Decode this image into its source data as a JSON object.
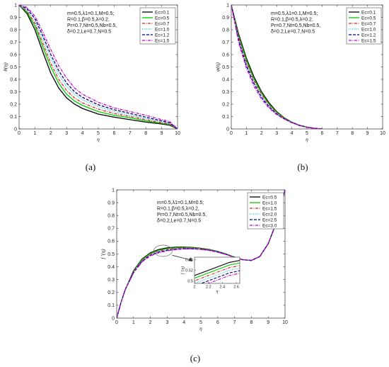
{
  "chart_data": [
    {
      "type": "line",
      "caption": "(a)",
      "xlabel": "η",
      "ylabel": "θ(η)",
      "xlim": [
        0,
        10
      ],
      "ylim": [
        0,
        1
      ],
      "xticks": [
        "0",
        "1",
        "2",
        "3",
        "4",
        "5",
        "6",
        "7",
        "8",
        "9",
        "10"
      ],
      "yticks": [
        "0",
        "0.1",
        "0.2",
        "0.3",
        "0.4",
        "0.5",
        "0.6",
        "0.7",
        "0.8",
        "0.9",
        "1"
      ],
      "annotation": [
        "m=0.5,λ1=0.1,M=0.5;",
        "R=0.1,β=0.5,λ=0.2,",
        "Pr=0.7,Nt=0.5,Nb=0.5,",
        "δ=0.2,Le=0.7,N=0.5"
      ],
      "legend_position": "top-right",
      "x": [
        0,
        0.5,
        1,
        1.5,
        2,
        2.5,
        3,
        3.5,
        4,
        5,
        6,
        7,
        8,
        9,
        9.5,
        10
      ],
      "series": [
        {
          "name": "Ec=0.1",
          "color": "#000000",
          "dash": "solid",
          "values": [
            1.0,
            0.93,
            0.8,
            0.62,
            0.45,
            0.33,
            0.25,
            0.2,
            0.165,
            0.12,
            0.095,
            0.075,
            0.055,
            0.04,
            0.03,
            0.0
          ]
        },
        {
          "name": "Ec=0.5",
          "color": "#00cc00",
          "dash": "solid",
          "values": [
            1.0,
            0.94,
            0.83,
            0.66,
            0.5,
            0.37,
            0.28,
            0.225,
            0.19,
            0.14,
            0.11,
            0.09,
            0.065,
            0.045,
            0.035,
            0.0
          ]
        },
        {
          "name": "Ec=0.7",
          "color": "#d62728",
          "dash": "dashdot",
          "values": [
            1.0,
            0.95,
            0.85,
            0.69,
            0.53,
            0.4,
            0.31,
            0.25,
            0.21,
            0.16,
            0.125,
            0.1,
            0.075,
            0.05,
            0.04,
            0.0
          ]
        },
        {
          "name": "Ec=1.0",
          "color": "#17becf",
          "dash": "dotted",
          "values": [
            1.0,
            0.96,
            0.87,
            0.72,
            0.57,
            0.44,
            0.34,
            0.28,
            0.235,
            0.18,
            0.14,
            0.11,
            0.085,
            0.06,
            0.045,
            0.0
          ]
        },
        {
          "name": "Ec=1.2",
          "color": "#00008b",
          "dash": "dashed",
          "values": [
            1.0,
            0.97,
            0.89,
            0.75,
            0.6,
            0.47,
            0.37,
            0.3,
            0.255,
            0.195,
            0.155,
            0.125,
            0.095,
            0.065,
            0.05,
            0.0
          ]
        },
        {
          "name": "Ec=1.5",
          "color": "#cc00cc",
          "dash": "dashdot",
          "values": [
            1.0,
            0.98,
            0.91,
            0.78,
            0.64,
            0.51,
            0.41,
            0.33,
            0.28,
            0.215,
            0.17,
            0.14,
            0.11,
            0.075,
            0.06,
            0.0
          ]
        }
      ]
    },
    {
      "type": "line",
      "caption": "(b)",
      "xlabel": "η",
      "ylabel": "φ(η)",
      "xlim": [
        0,
        10
      ],
      "ylim": [
        0,
        1
      ],
      "xticks": [
        "0",
        "1",
        "2",
        "3",
        "4",
        "5",
        "6",
        "7",
        "8",
        "9",
        "10"
      ],
      "yticks": [
        "0",
        "0.1",
        "0.2",
        "0.3",
        "0.4",
        "0.5",
        "0.6",
        "0.7",
        "0.8",
        "0.9",
        "1"
      ],
      "annotation": [
        "m=0.5,λ1=0.1,M=0.5;",
        "R=0.1,β=0.5,λ=0.2,",
        "Pr=0.7,Nt=0.5,Nb=0.5,",
        "δ=0.2,Le=0.7,N=0.5"
      ],
      "legend_position": "top-right",
      "x": [
        0,
        0.5,
        1,
        1.5,
        2,
        2.5,
        3,
        3.5,
        4,
        4.5,
        5,
        5.5,
        6
      ],
      "series": [
        {
          "name": "Ec=0.1",
          "color": "#000000",
          "dash": "solid",
          "values": [
            1.0,
            0.76,
            0.57,
            0.42,
            0.3,
            0.21,
            0.14,
            0.09,
            0.055,
            0.03,
            0.015,
            0.005,
            0.0
          ]
        },
        {
          "name": "Ec=0.5",
          "color": "#00cc00",
          "dash": "solid",
          "values": [
            1.0,
            0.745,
            0.555,
            0.405,
            0.29,
            0.2,
            0.135,
            0.088,
            0.054,
            0.03,
            0.015,
            0.005,
            0.0
          ]
        },
        {
          "name": "Ec=0.7",
          "color": "#d62728",
          "dash": "dashdot",
          "values": [
            1.0,
            0.735,
            0.54,
            0.39,
            0.28,
            0.195,
            0.13,
            0.086,
            0.053,
            0.029,
            0.014,
            0.005,
            0.0
          ]
        },
        {
          "name": "Ec=1.0",
          "color": "#17becf",
          "dash": "dotted",
          "values": [
            1.0,
            0.72,
            0.52,
            0.375,
            0.265,
            0.185,
            0.125,
            0.084,
            0.052,
            0.029,
            0.014,
            0.005,
            0.0
          ]
        },
        {
          "name": "Ec=1.2",
          "color": "#00008b",
          "dash": "dashed",
          "values": [
            1.0,
            0.71,
            0.51,
            0.365,
            0.255,
            0.178,
            0.12,
            0.082,
            0.051,
            0.028,
            0.014,
            0.005,
            0.0
          ]
        },
        {
          "name": "Ec=1.5",
          "color": "#cc00cc",
          "dash": "dashdot",
          "values": [
            1.0,
            0.69,
            0.49,
            0.345,
            0.24,
            0.168,
            0.115,
            0.08,
            0.05,
            0.028,
            0.013,
            0.005,
            0.0
          ]
        }
      ]
    },
    {
      "type": "line",
      "caption": "(c)",
      "xlabel": "η",
      "ylabel": "f ′(η)",
      "xlim": [
        0,
        10
      ],
      "ylim": [
        0,
        1
      ],
      "xticks": [
        "0",
        "1",
        "2",
        "3",
        "4",
        "5",
        "6",
        "7",
        "8",
        "9",
        "10"
      ],
      "yticks": [
        "0",
        "0.1",
        "0.2",
        "0.3",
        "0.4",
        "0.5",
        "0.6",
        "0.7",
        "0.8",
        "0.9",
        "1"
      ],
      "annotation": [
        "m=0.5,λ1=0.1,M=0.5;",
        "R=0.1,β=0.5,λ=0.2,",
        "Pr=0.7,Nt=0.5,Nb=0.5,",
        "δ=0.2,Le=0.7,N=0.5"
      ],
      "legend_position": "top-right",
      "x": [
        0,
        0.25,
        0.5,
        1,
        1.5,
        2,
        2.5,
        3,
        3.5,
        4,
        4.5,
        5,
        5.5,
        6,
        6.5,
        7,
        7.5,
        8,
        8.5,
        9,
        9.5,
        10
      ],
      "series": [
        {
          "name": "Ec=0.5",
          "color": "#000000",
          "dash": "solid",
          "values": [
            0.0,
            0.12,
            0.22,
            0.37,
            0.46,
            0.51,
            0.535,
            0.548,
            0.553,
            0.554,
            0.551,
            0.545,
            0.535,
            0.52,
            0.5,
            0.475,
            0.455,
            0.45,
            0.48,
            0.58,
            0.75,
            1.0
          ]
        },
        {
          "name": "Ec=1.0",
          "color": "#00cc00",
          "dash": "solid",
          "values": [
            0.0,
            0.12,
            0.22,
            0.365,
            0.455,
            0.505,
            0.53,
            0.543,
            0.549,
            0.55,
            0.548,
            0.543,
            0.533,
            0.518,
            0.499,
            0.475,
            0.455,
            0.45,
            0.48,
            0.58,
            0.75,
            1.0
          ]
        },
        {
          "name": "Ec=1.5",
          "color": "#d62728",
          "dash": "dashdot",
          "values": [
            0.0,
            0.12,
            0.22,
            0.362,
            0.45,
            0.5,
            0.525,
            0.538,
            0.545,
            0.547,
            0.545,
            0.541,
            0.532,
            0.517,
            0.498,
            0.474,
            0.455,
            0.45,
            0.48,
            0.58,
            0.75,
            1.0
          ]
        },
        {
          "name": "Ec=2.0",
          "color": "#17becf",
          "dash": "dotted",
          "values": [
            0.0,
            0.12,
            0.22,
            0.358,
            0.446,
            0.495,
            0.52,
            0.533,
            0.541,
            0.544,
            0.543,
            0.539,
            0.53,
            0.516,
            0.497,
            0.474,
            0.455,
            0.45,
            0.48,
            0.58,
            0.75,
            1.0
          ]
        },
        {
          "name": "Ec=2.5",
          "color": "#00008b",
          "dash": "dashed",
          "values": [
            0.0,
            0.12,
            0.22,
            0.355,
            0.442,
            0.49,
            0.515,
            0.529,
            0.537,
            0.541,
            0.541,
            0.537,
            0.529,
            0.515,
            0.497,
            0.474,
            0.455,
            0.45,
            0.48,
            0.58,
            0.75,
            1.0
          ]
        },
        {
          "name": "Ec=3.0",
          "color": "#cc00cc",
          "dash": "dashdot",
          "values": [
            0.0,
            0.12,
            0.22,
            0.352,
            0.438,
            0.485,
            0.51,
            0.525,
            0.534,
            0.539,
            0.539,
            0.536,
            0.528,
            0.514,
            0.496,
            0.473,
            0.455,
            0.45,
            0.48,
            0.58,
            0.75,
            1.0
          ]
        }
      ],
      "inset": {
        "xlabel": "η",
        "ylabel": "f ′(η)",
        "xlim": [
          2,
          2.65
        ],
        "ylim": [
          0.495,
          0.545
        ],
        "xticks": [
          "2",
          "2.2",
          "2.4",
          "2.6"
        ],
        "yticks": [
          "0.5",
          "0.52",
          "0.54"
        ]
      }
    }
  ]
}
